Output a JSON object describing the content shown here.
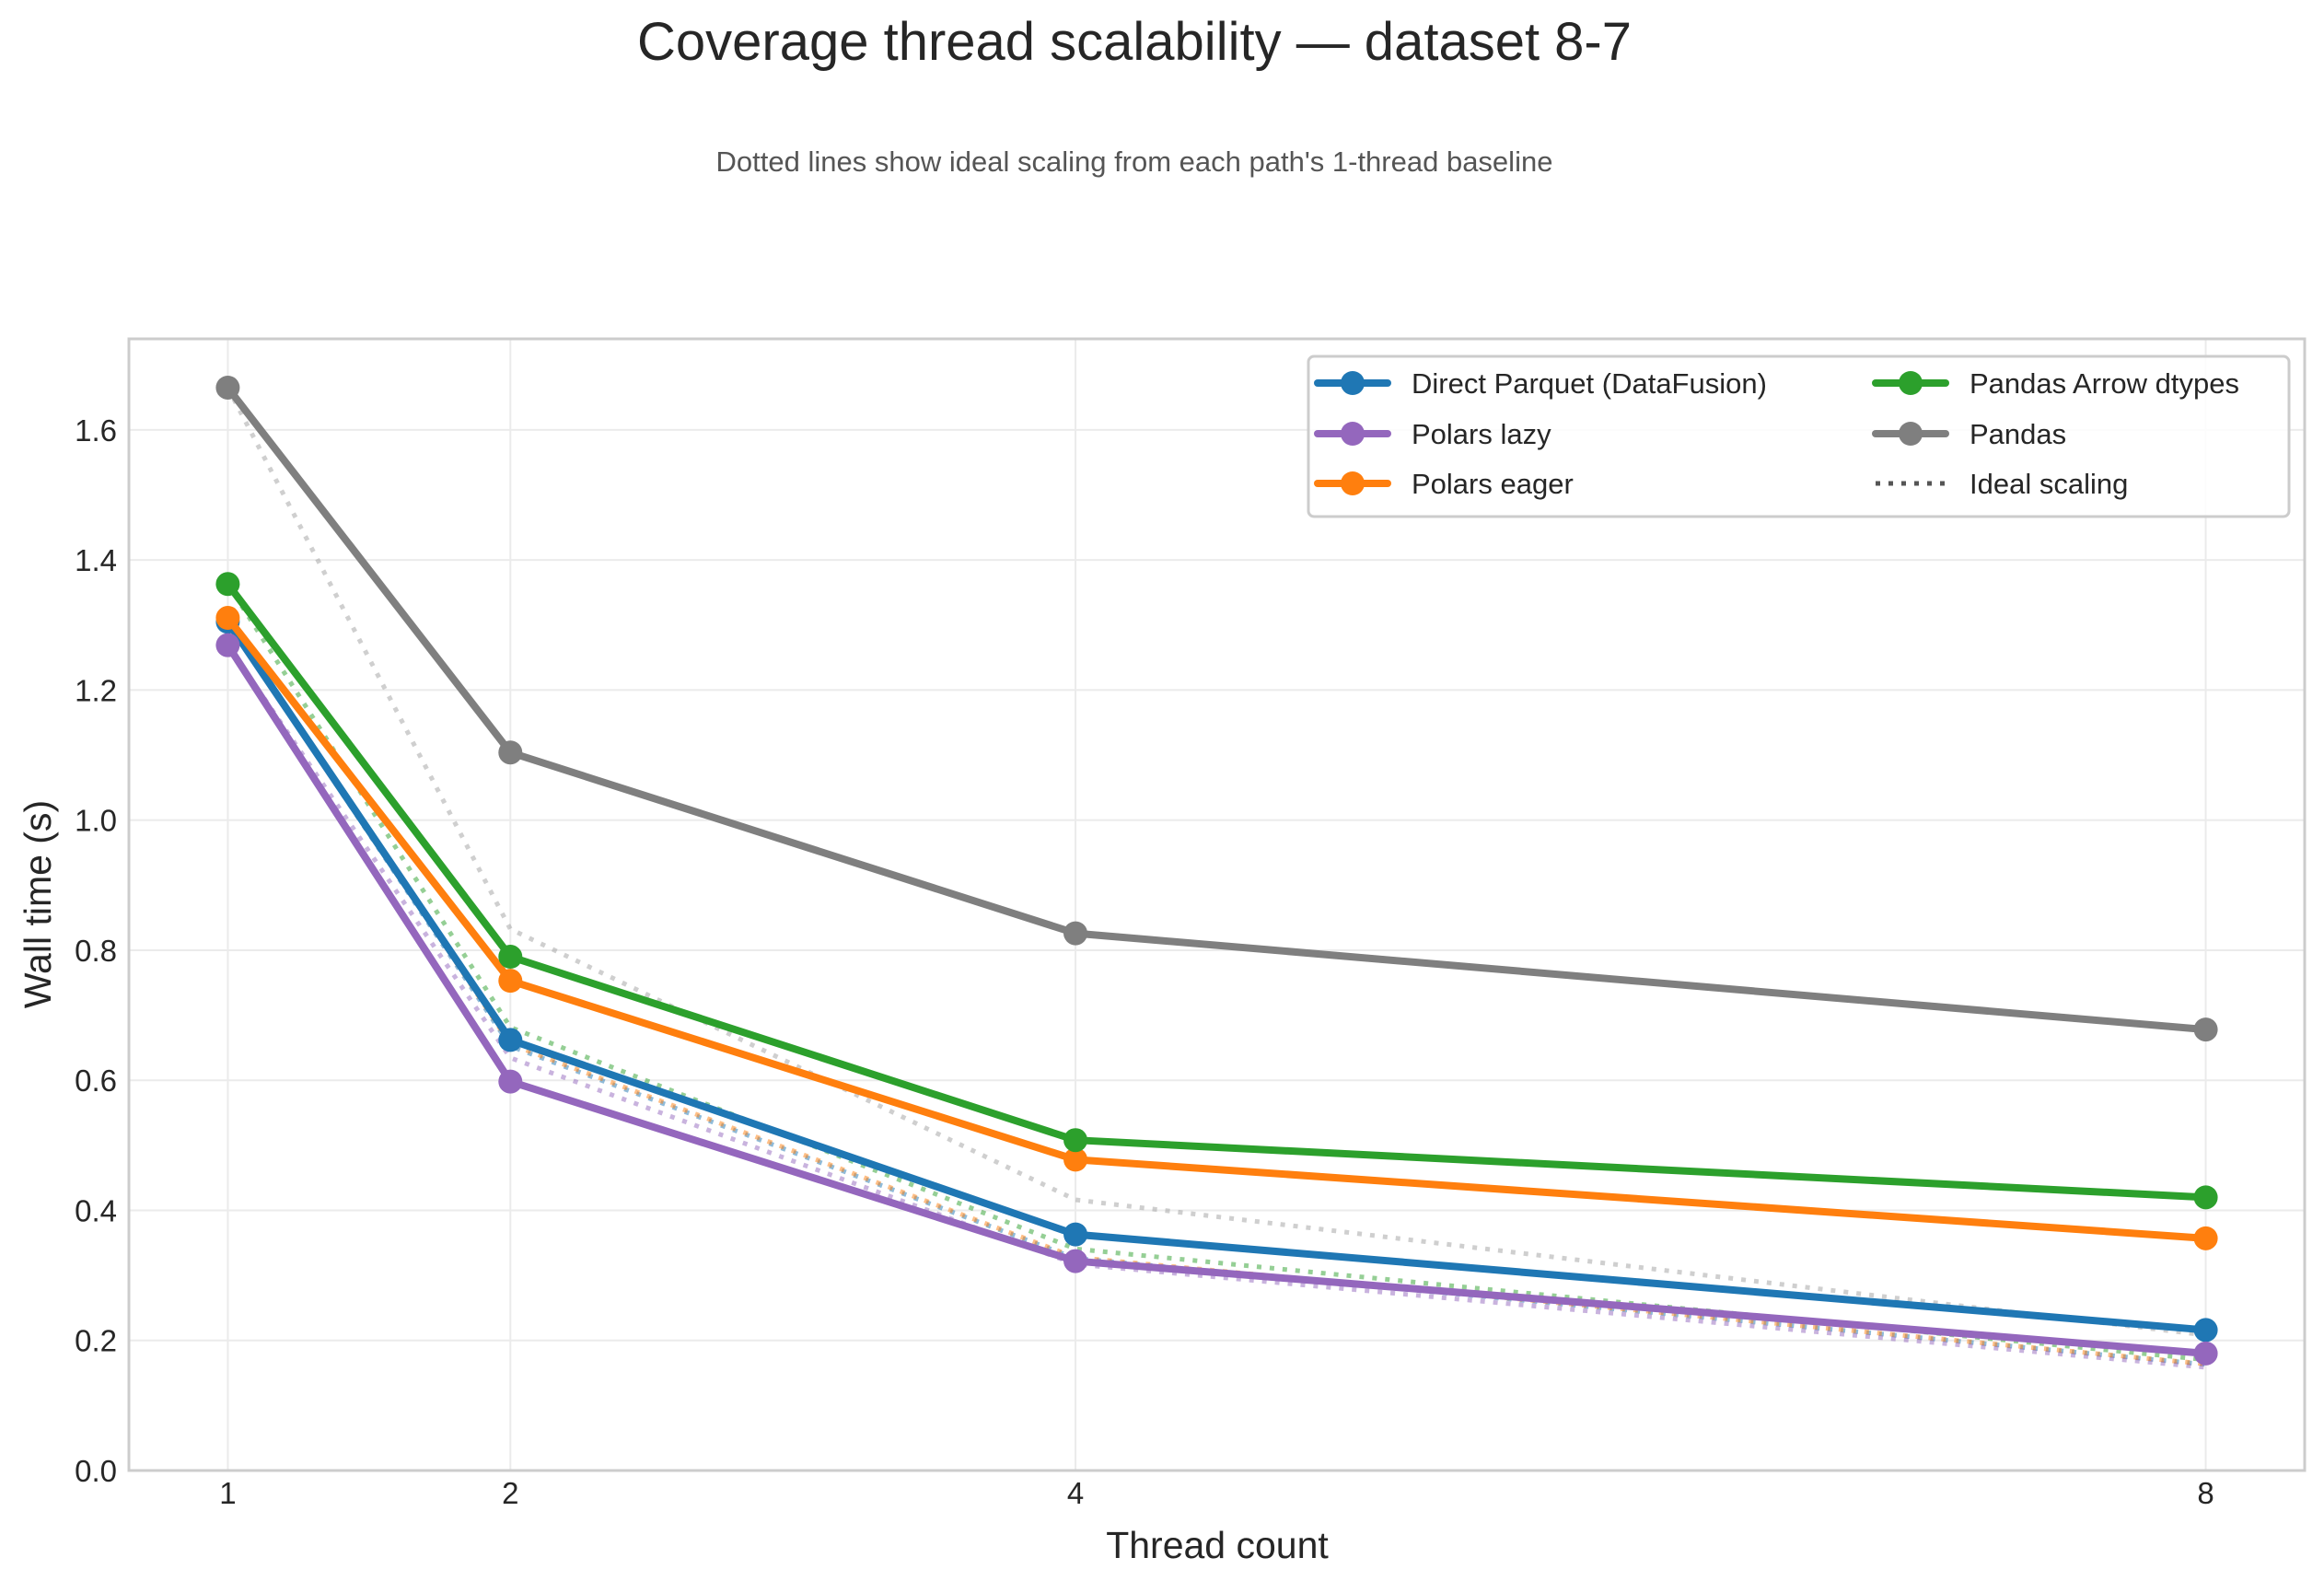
{
  "chart_data": {
    "type": "line",
    "title": "Coverage thread scalability — dataset 8-7",
    "subtitle": "Dotted lines show ideal scaling from each path's 1-thread baseline",
    "xlabel": "Thread count",
    "ylabel": "Wall time (s)",
    "x": [
      1,
      2,
      4,
      8
    ],
    "x_tick_labels": [
      "1",
      "2",
      "4",
      "8"
    ],
    "y_ticks": [
      0.0,
      0.2,
      0.4,
      0.6,
      0.8,
      1.0,
      1.2,
      1.4,
      1.6
    ],
    "y_tick_labels": [
      "0.0",
      "0.2",
      "0.4",
      "0.6",
      "0.8",
      "1.0",
      "1.2",
      "1.4",
      "1.6"
    ],
    "xlim": [
      0.65,
      8.35
    ],
    "ylim": [
      0,
      1.74
    ],
    "grid": true,
    "legend_placement": "top-right",
    "legend_columns": 2,
    "series": [
      {
        "name": "Direct Parquet (DataFusion)",
        "color": "#1f77b4",
        "values": [
          1.305,
          0.662,
          0.363,
          0.216
        ]
      },
      {
        "name": "Polars lazy",
        "color": "#9467bd",
        "values": [
          1.269,
          0.598,
          0.322,
          0.18
        ]
      },
      {
        "name": "Polars eager",
        "color": "#ff7f0e",
        "values": [
          1.311,
          0.753,
          0.478,
          0.357
        ]
      },
      {
        "name": "Pandas Arrow dtypes",
        "color": "#2ca02c",
        "values": [
          1.363,
          0.79,
          0.508,
          0.42
        ]
      },
      {
        "name": "Pandas",
        "color": "#7f7f7f",
        "values": [
          1.665,
          1.104,
          0.826,
          0.678
        ]
      }
    ],
    "ideal_scaling": {
      "name": "Ideal scaling",
      "legend_color": "#555555",
      "style": "dotted",
      "description_rule": "baseline / threads"
    }
  }
}
